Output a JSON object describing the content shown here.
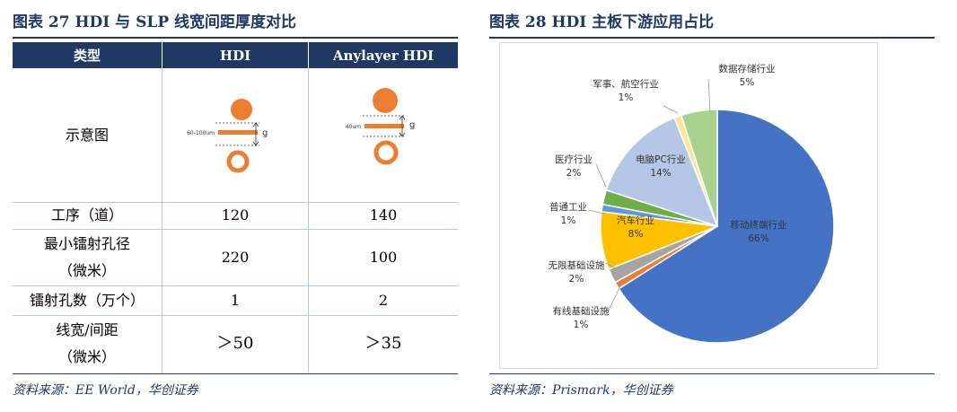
{
  "left": {
    "title": "图表 27   HDI 与 SLP 线宽间距厚度对比",
    "source": "资料来源：EE World，华创证券",
    "table": {
      "headers": [
        "类型",
        "HDI",
        "Anylayer HDI"
      ],
      "rows": [
        {
          "label": "示意图",
          "hdi": "",
          "anylayer": ""
        },
        {
          "label": "工序（道）",
          "hdi": "120",
          "anylayer": "140"
        },
        {
          "label": "最小镭射孔径\n（微米）",
          "hdi": "220",
          "anylayer": "100"
        },
        {
          "label": "镭射孔数（万个）",
          "hdi": "1",
          "anylayer": "2"
        },
        {
          "label": "线宽/间距\n（微米）",
          "hdi": "＞50",
          "anylayer": "＞35"
        }
      ],
      "diagram": {
        "hdi_width_label": "60-100um",
        "anylayer_width_label": "40um",
        "gap_label": "g",
        "color": "#ed7d31"
      }
    }
  },
  "right": {
    "title": "图表 28   HDI 主板下游应用占比",
    "source": "资料来源：Prismark，华创证券",
    "chart_data": {
      "type": "pie",
      "title": "",
      "slices": [
        {
          "name": "移动终端行业",
          "value": 66,
          "label": "66%",
          "color": "#4472c4"
        },
        {
          "name": "有线基础设施",
          "value": 1,
          "label": "1%",
          "color": "#ed7d31"
        },
        {
          "name": "无限基础设施",
          "value": 2,
          "label": "2%",
          "color": "#a5a5a5"
        },
        {
          "name": "汽车行业",
          "value": 8,
          "label": "8%",
          "color": "#ffc000"
        },
        {
          "name": "普通工业",
          "value": 1,
          "label": "1%",
          "color": "#5b9bd5"
        },
        {
          "name": "医疗行业",
          "value": 2,
          "label": "2%",
          "color": "#70ad47"
        },
        {
          "name": "电脑PC行业",
          "value": 14,
          "label": "14%",
          "color": "#b4c7e7"
        },
        {
          "name": "军事、航空行业",
          "value": 1,
          "label": "1%",
          "color": "#ffe699"
        },
        {
          "name": "数据存储行业",
          "value": 5,
          "label": "5%",
          "color": "#a9d18e"
        }
      ]
    }
  }
}
